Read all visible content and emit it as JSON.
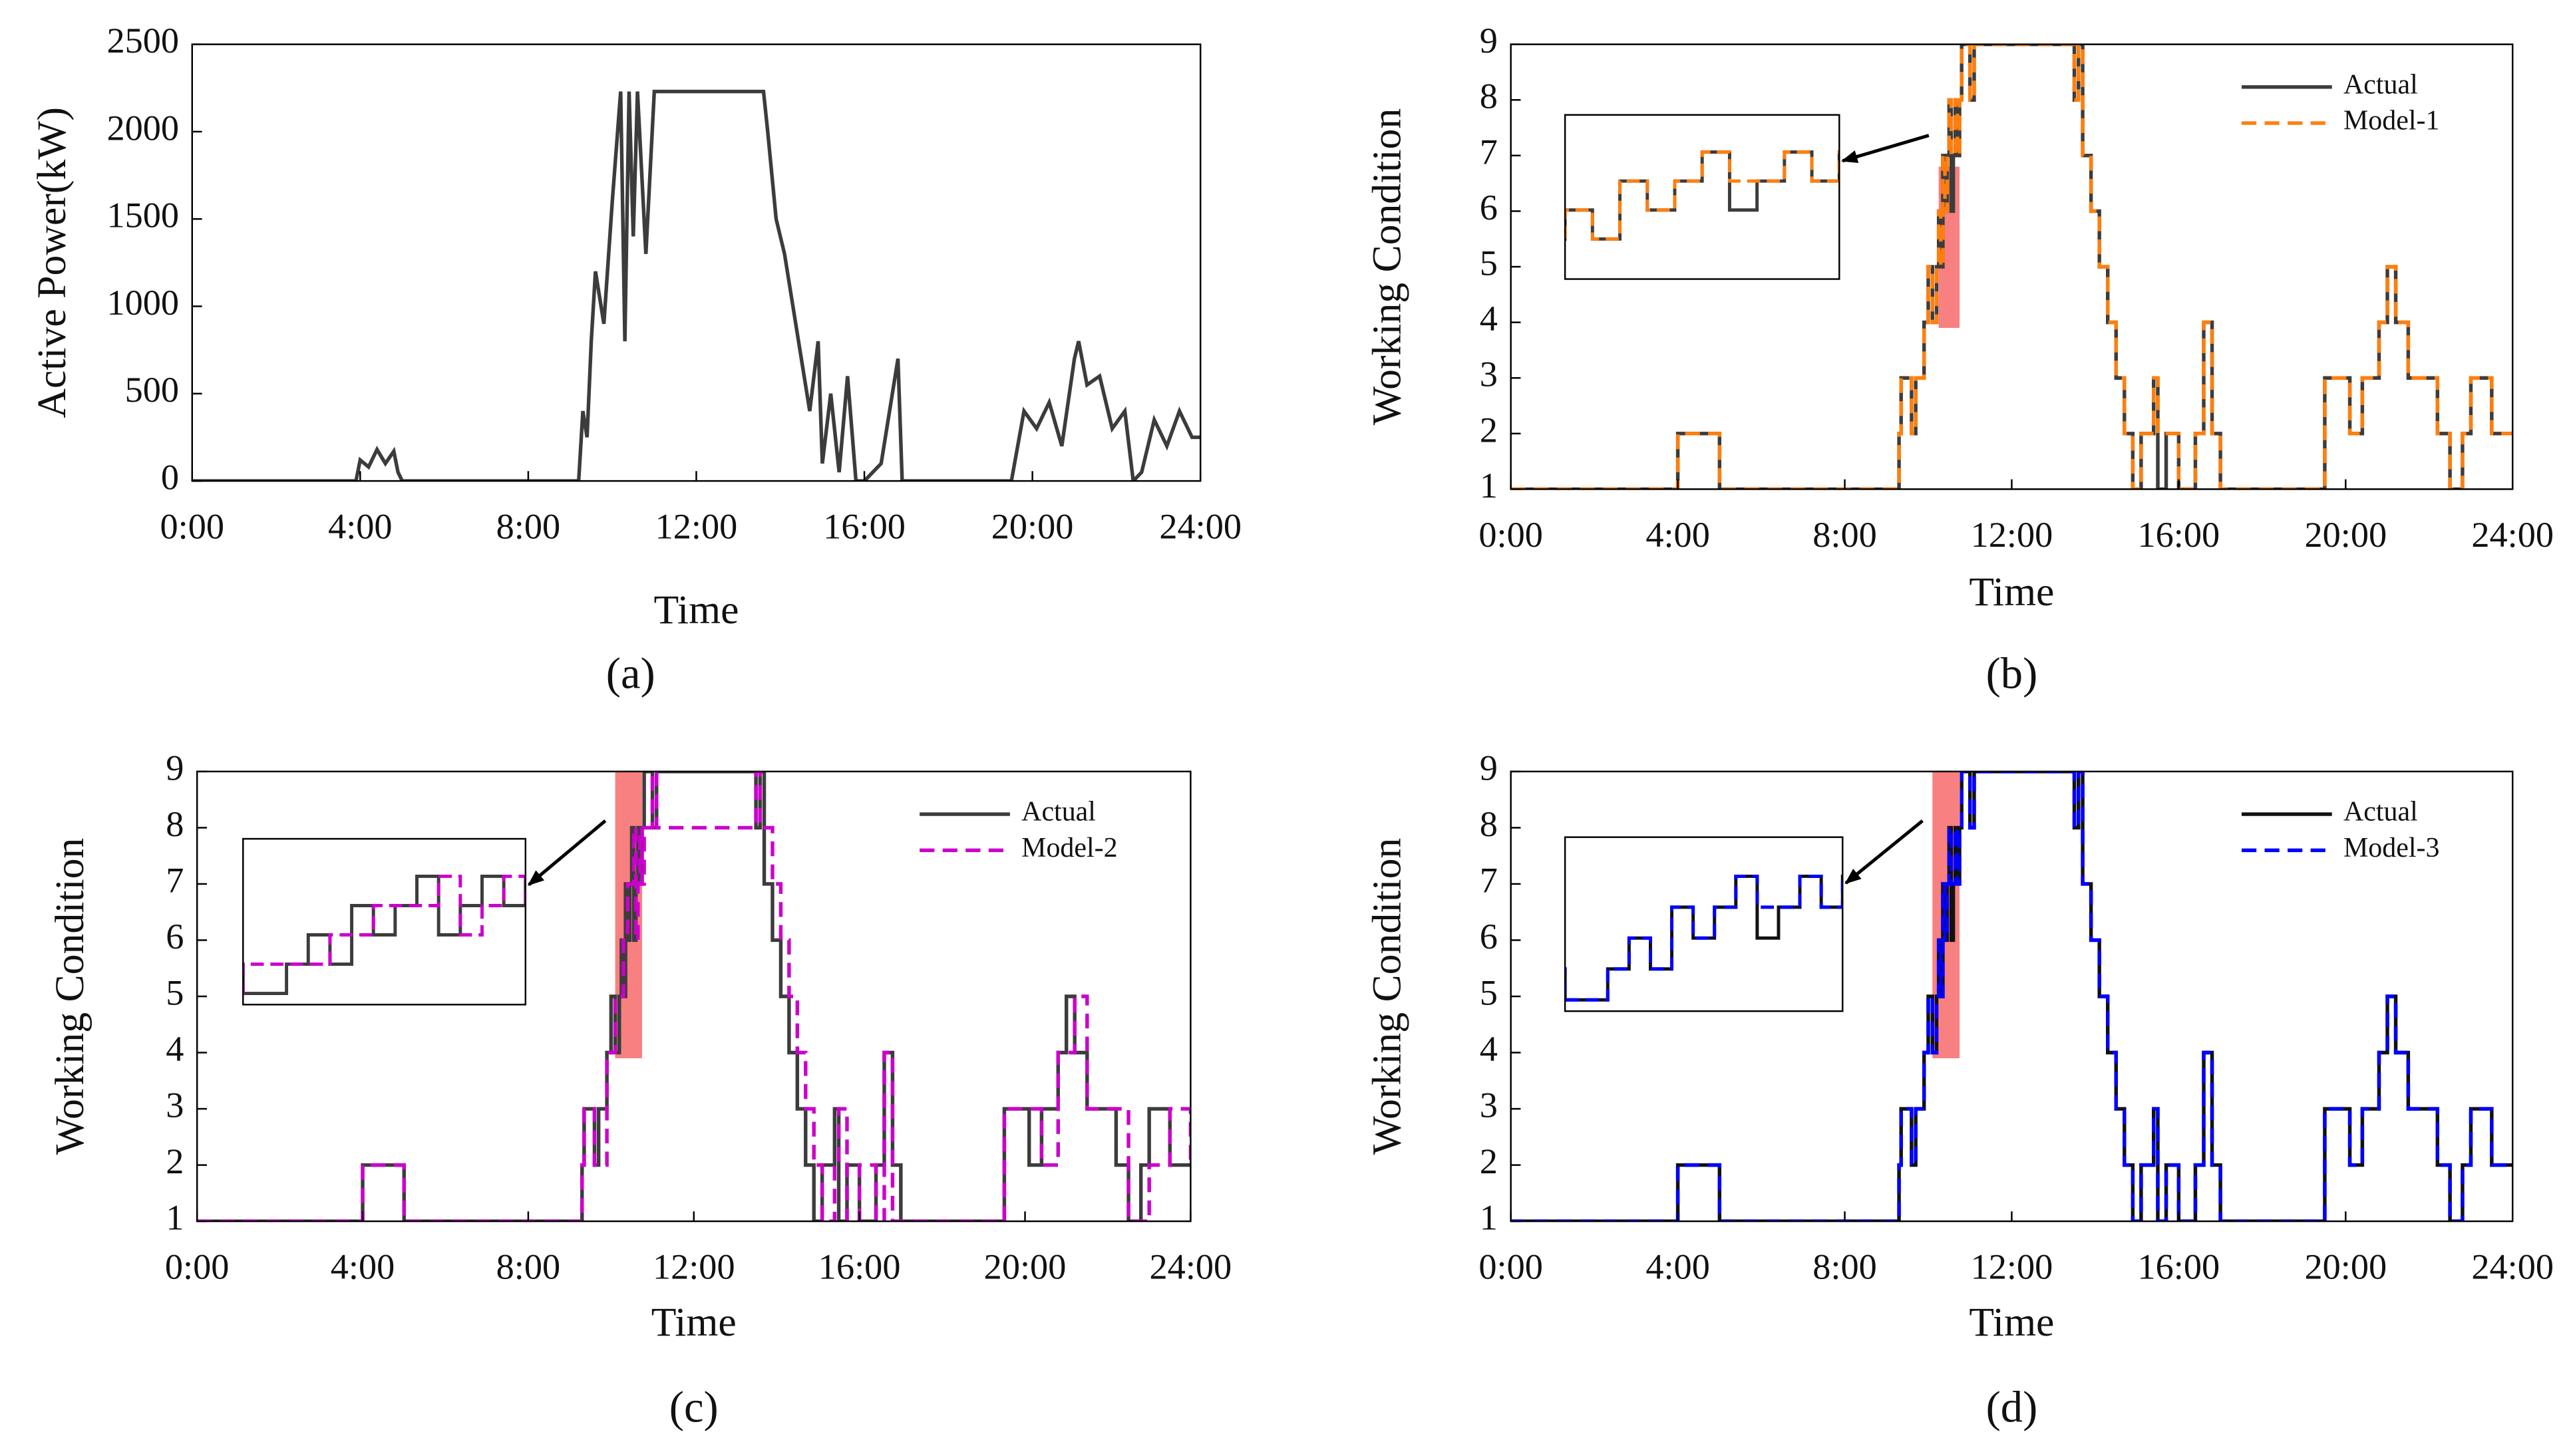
{
  "chart_data": [
    {
      "type": "line",
      "caption": "(a)",
      "xlabel": "Time",
      "ylabel": "Active Power(kW)",
      "xlim": [
        0,
        24
      ],
      "ylim": [
        0,
        2500
      ],
      "xticks": [
        {
          "value": 0,
          "label": "0:00"
        },
        {
          "value": 4,
          "label": "4:00"
        },
        {
          "value": 8,
          "label": "8:00"
        },
        {
          "value": 12,
          "label": "12:00"
        },
        {
          "value": 16,
          "label": "16:00"
        },
        {
          "value": 20,
          "label": "20:00"
        },
        {
          "value": 24,
          "label": "24:00"
        }
      ],
      "yticks": [
        0,
        500,
        1000,
        1500,
        2000,
        2500
      ],
      "x": [
        0,
        3.9,
        4,
        4.2,
        4.4,
        4.6,
        4.8,
        4.9,
        5,
        9.2,
        9.3,
        9.4,
        9.5,
        9.6,
        9.8,
        10,
        10.2,
        10.3,
        10.4,
        10.5,
        10.6,
        10.8,
        11,
        11.2,
        11.4,
        13.6,
        13.7,
        13.9,
        14.1,
        14.3,
        14.5,
        14.7,
        14.9,
        15,
        15.2,
        15.4,
        15.6,
        15.8,
        16,
        16.4,
        16.8,
        16.9,
        17.1,
        19.5,
        19.8,
        20.1,
        20.4,
        20.7,
        21,
        21.1,
        21.3,
        21.6,
        21.9,
        22.2,
        22.4,
        22.6,
        22.9,
        23.2,
        23.5,
        23.8,
        24
      ],
      "series": [
        {
          "color": "#3c3c3c",
          "values": [
            0,
            0,
            120,
            80,
            180,
            100,
            170,
            50,
            0,
            0,
            400,
            250,
            800,
            1200,
            900,
            1600,
            2230,
            800,
            2230,
            1400,
            2230,
            1300,
            2230,
            2230,
            2230,
            2230,
            2000,
            1500,
            1300,
            1000,
            700,
            400,
            800,
            100,
            500,
            50,
            600,
            0,
            0,
            100,
            700,
            0,
            0,
            0,
            400,
            300,
            450,
            200,
            700,
            800,
            550,
            600,
            300,
            400,
            0,
            50,
            350,
            200,
            400,
            250,
            250
          ]
        }
      ]
    },
    {
      "type": "step",
      "caption": "(b)",
      "xlabel": "Time",
      "ylabel": "Working Condition",
      "xlim": [
        0,
        24
      ],
      "ylim": [
        1,
        9
      ],
      "legend": "upper right",
      "xticks": [
        {
          "value": 0,
          "label": "0:00"
        },
        {
          "value": 4,
          "label": "4:00"
        },
        {
          "value": 8,
          "label": "8:00"
        },
        {
          "value": 12,
          "label": "12:00"
        },
        {
          "value": 16,
          "label": "16:00"
        },
        {
          "value": 20,
          "label": "20:00"
        },
        {
          "value": 24,
          "label": "24:00"
        }
      ],
      "yticks": [
        1,
        2,
        3,
        4,
        5,
        6,
        7,
        8,
        9
      ],
      "highlight": {
        "xlim": [
          10.25,
          10.75
        ],
        "ylim": [
          3.9,
          6.8
        ],
        "color": "#f88080"
      },
      "x": [
        0,
        4,
        5,
        9.3,
        9.35,
        9.6,
        9.7,
        9.9,
        10,
        10.1,
        10.2,
        10.25,
        10.3,
        10.35,
        10.4,
        10.45,
        10.5,
        10.55,
        10.6,
        10.65,
        10.7,
        10.75,
        10.8,
        11,
        11.1,
        13.5,
        13.6,
        13.7,
        13.9,
        14.1,
        14.3,
        14.5,
        14.7,
        14.9,
        15.1,
        15.4,
        15.5,
        15.7,
        16,
        16.4,
        16.6,
        16.8,
        17,
        19.5,
        20.1,
        20.4,
        20.8,
        21,
        21.2,
        21.5,
        22.2,
        22.5,
        22.8,
        23,
        23.5,
        24
      ],
      "series": [
        {
          "name": "Actual",
          "color": "#3c3c3c",
          "linestyle": "solid",
          "values": [
            1,
            2,
            1,
            2,
            3,
            2,
            3,
            4,
            5,
            4,
            5,
            6,
            5,
            7,
            6,
            7,
            8,
            6,
            7,
            8,
            7,
            8,
            9,
            8,
            9,
            8,
            9,
            7,
            6,
            5,
            4,
            3,
            2,
            1,
            2,
            3,
            1,
            2,
            1,
            2,
            4,
            2,
            1,
            3,
            2,
            3,
            4,
            5,
            4,
            3,
            2,
            1,
            2,
            3,
            2,
            2
          ]
        },
        {
          "name": "Model-1",
          "color": "#ff7f0e",
          "linestyle": "dashed",
          "values": [
            1,
            2,
            1,
            2,
            3,
            2,
            3,
            4,
            5,
            4,
            5,
            6,
            5,
            7,
            6,
            7,
            8,
            7,
            7,
            8,
            7,
            8,
            9,
            8,
            9,
            8,
            9,
            7,
            6,
            5,
            4,
            3,
            2,
            1,
            2,
            3,
            2,
            2,
            1,
            2,
            4,
            2,
            1,
            3,
            2,
            3,
            4,
            5,
            4,
            3,
            2,
            1,
            2,
            3,
            2,
            2
          ]
        }
      ]
    },
    {
      "type": "step",
      "caption": "(c)",
      "xlabel": "Time",
      "ylabel": "Working Condition",
      "xlim": [
        0,
        24
      ],
      "ylim": [
        1,
        9
      ],
      "legend": "upper right",
      "xticks": [
        {
          "value": 0,
          "label": "0:00"
        },
        {
          "value": 4,
          "label": "4:00"
        },
        {
          "value": 8,
          "label": "8:00"
        },
        {
          "value": 12,
          "label": "12:00"
        },
        {
          "value": 16,
          "label": "16:00"
        },
        {
          "value": 20,
          "label": "20:00"
        },
        {
          "value": 24,
          "label": "24:00"
        }
      ],
      "yticks": [
        1,
        2,
        3,
        4,
        5,
        6,
        7,
        8,
        9
      ],
      "highlight": {
        "xlim": [
          10.1,
          10.75
        ],
        "ylim": [
          3.9,
          9
        ],
        "color": "#f88080"
      },
      "x": [
        0,
        4,
        5,
        9.3,
        9.35,
        9.6,
        9.7,
        9.9,
        10,
        10.1,
        10.2,
        10.25,
        10.3,
        10.35,
        10.4,
        10.45,
        10.5,
        10.55,
        10.6,
        10.65,
        10.7,
        10.75,
        10.8,
        11,
        11.1,
        13.5,
        13.6,
        13.7,
        13.9,
        14.1,
        14.3,
        14.5,
        14.7,
        14.9,
        15.1,
        15.4,
        15.5,
        15.7,
        16,
        16.4,
        16.6,
        16.8,
        17,
        19.5,
        20.1,
        20.4,
        20.8,
        21,
        21.2,
        21.5,
        22.2,
        22.5,
        22.8,
        23,
        23.5,
        24
      ],
      "series": [
        {
          "name": "Actual",
          "color": "#3c3c3c",
          "linestyle": "solid",
          "values": [
            1,
            2,
            1,
            2,
            3,
            2,
            3,
            4,
            5,
            4,
            5,
            6,
            5,
            7,
            6,
            7,
            8,
            6,
            7,
            8,
            7,
            8,
            9,
            8,
            9,
            8,
            9,
            7,
            6,
            5,
            4,
            3,
            2,
            1,
            2,
            3,
            1,
            2,
            1,
            2,
            4,
            2,
            1,
            3,
            2,
            3,
            4,
            5,
            4,
            3,
            2,
            1,
            2,
            3,
            2,
            2
          ]
        },
        {
          "name": "Model-2",
          "color": "#cc00cc",
          "linestyle": "dashed",
          "values": [
            1,
            2,
            1,
            2,
            3,
            2,
            2,
            4,
            4,
            5,
            5,
            5,
            6,
            6,
            7,
            7,
            7,
            8,
            6,
            7,
            8,
            7,
            8,
            9,
            8,
            9,
            8,
            8,
            7,
            6,
            5,
            4,
            3,
            2,
            1,
            2,
            3,
            1,
            2,
            1,
            4,
            1,
            1,
            3,
            3,
            2,
            4,
            4,
            5,
            3,
            3,
            1,
            1,
            2,
            3,
            2
          ]
        }
      ]
    },
    {
      "type": "step",
      "caption": "(d)",
      "xlabel": "Time",
      "ylabel": "Working Condition",
      "xlim": [
        0,
        24
      ],
      "ylim": [
        1,
        9
      ],
      "legend": "upper right",
      "xticks": [
        {
          "value": 0,
          "label": "0:00"
        },
        {
          "value": 4,
          "label": "4:00"
        },
        {
          "value": 8,
          "label": "8:00"
        },
        {
          "value": 12,
          "label": "12:00"
        },
        {
          "value": 16,
          "label": "16:00"
        },
        {
          "value": 20,
          "label": "20:00"
        },
        {
          "value": 24,
          "label": "24:00"
        }
      ],
      "yticks": [
        1,
        2,
        3,
        4,
        5,
        6,
        7,
        8,
        9
      ],
      "highlight": {
        "xlim": [
          10.1,
          10.75
        ],
        "ylim": [
          3.9,
          9
        ],
        "color": "#f88080"
      },
      "x": [
        0,
        4,
        5,
        9.3,
        9.35,
        9.6,
        9.7,
        9.9,
        10,
        10.1,
        10.2,
        10.25,
        10.3,
        10.35,
        10.4,
        10.45,
        10.5,
        10.55,
        10.6,
        10.65,
        10.7,
        10.75,
        10.8,
        11,
        11.1,
        13.5,
        13.6,
        13.7,
        13.9,
        14.1,
        14.3,
        14.5,
        14.7,
        14.9,
        15.1,
        15.4,
        15.5,
        15.7,
        16,
        16.4,
        16.6,
        16.8,
        17,
        19.5,
        20.1,
        20.4,
        20.8,
        21,
        21.2,
        21.5,
        22.2,
        22.5,
        22.8,
        23,
        23.5,
        24
      ],
      "series": [
        {
          "name": "Actual",
          "color": "#111111",
          "linestyle": "solid",
          "values": [
            1,
            2,
            1,
            2,
            3,
            2,
            3,
            4,
            5,
            4,
            5,
            6,
            5,
            7,
            6,
            7,
            8,
            6,
            7,
            8,
            7,
            8,
            9,
            8,
            9,
            8,
            9,
            7,
            6,
            5,
            4,
            3,
            2,
            1,
            2,
            3,
            1,
            2,
            1,
            2,
            4,
            2,
            1,
            3,
            2,
            3,
            4,
            5,
            4,
            3,
            2,
            1,
            2,
            3,
            2,
            2
          ]
        },
        {
          "name": "Model-3",
          "color": "#0000ff",
          "linestyle": "dashed",
          "values": [
            1,
            2,
            1,
            2,
            3,
            2,
            3,
            4,
            5,
            4,
            5,
            6,
            5,
            7,
            6,
            7,
            8,
            7,
            7,
            8,
            7,
            8,
            9,
            8,
            9,
            8,
            9,
            7,
            6,
            5,
            4,
            3,
            2,
            1,
            2,
            3,
            1,
            2,
            1,
            2,
            4,
            2,
            1,
            3,
            2,
            3,
            4,
            5,
            4,
            3,
            2,
            1,
            2,
            3,
            2,
            2
          ]
        }
      ]
    }
  ]
}
